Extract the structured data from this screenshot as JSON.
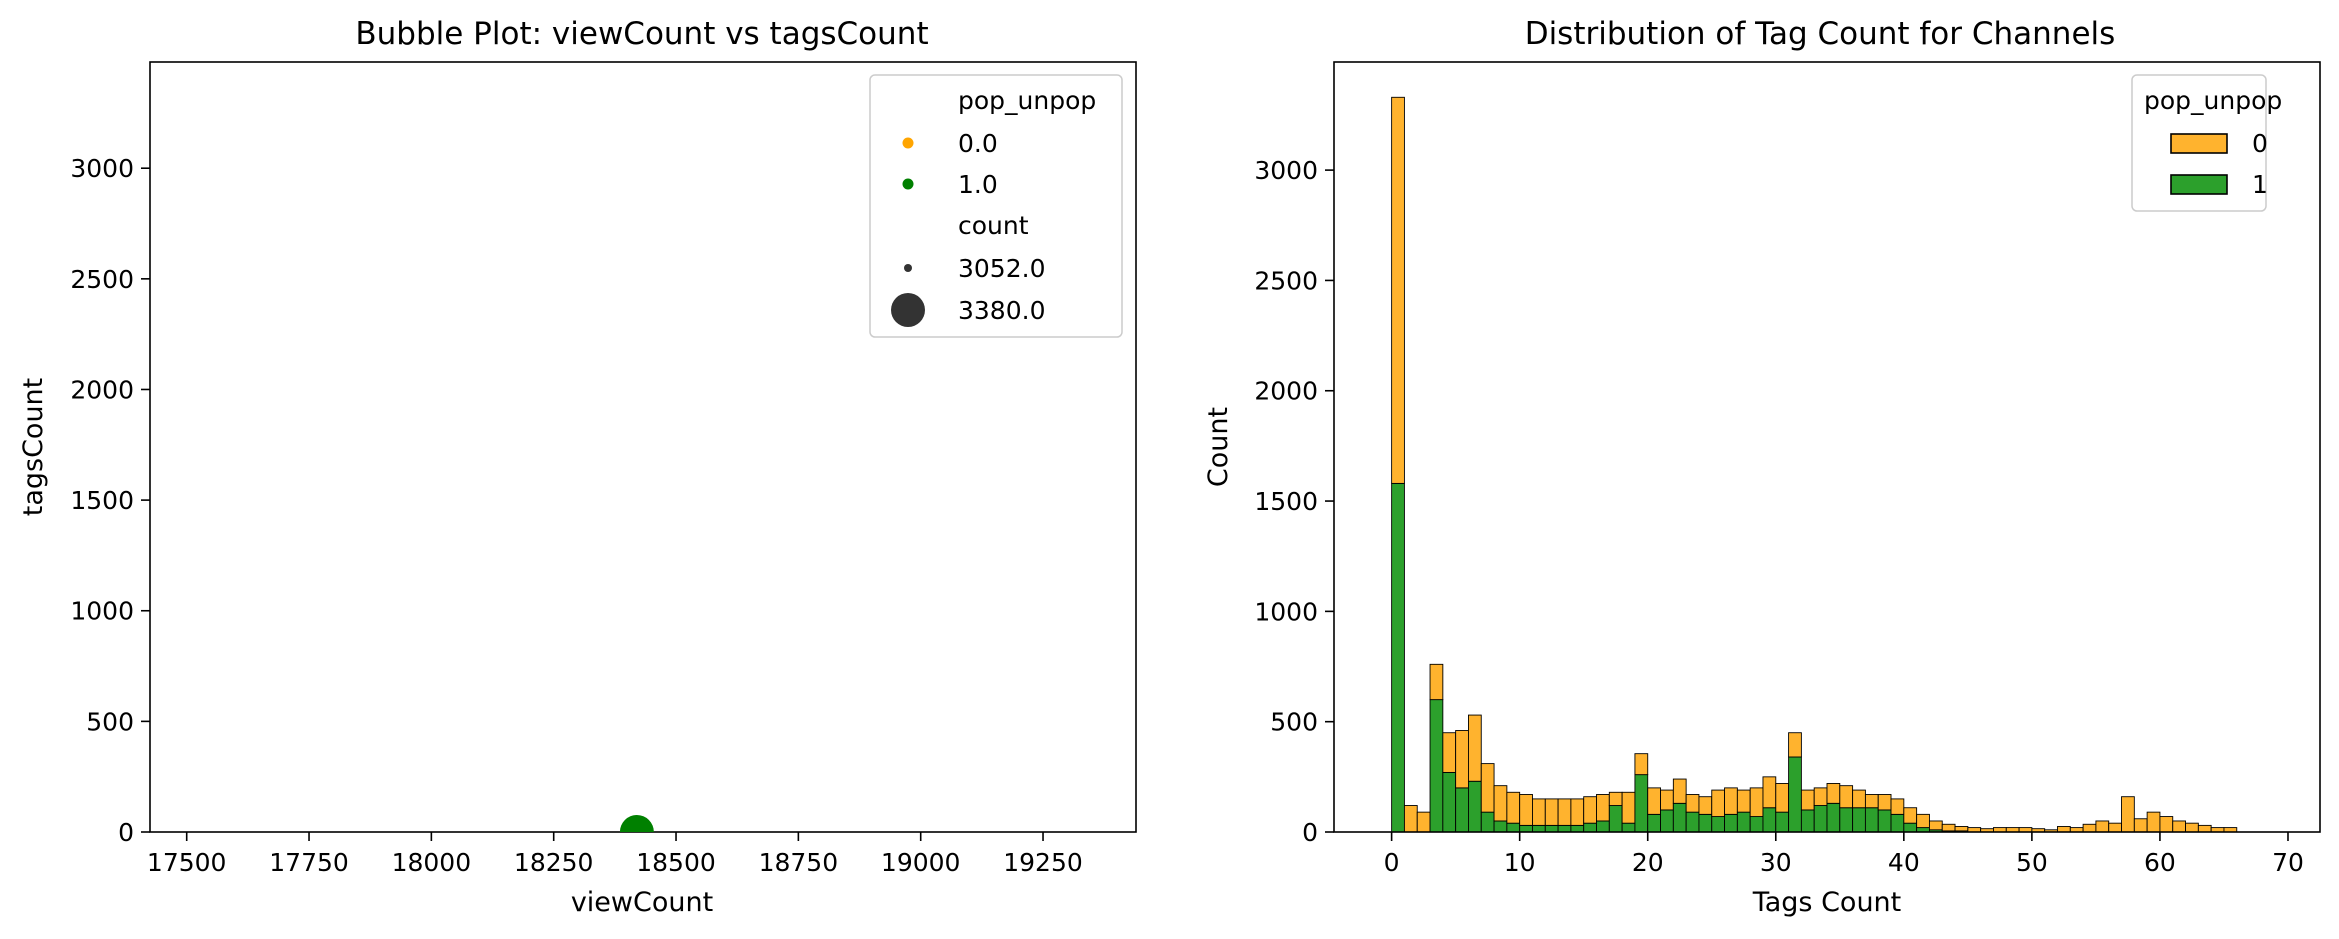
{
  "chart_data": [
    {
      "type": "scatter",
      "title": "Bubble Plot: viewCount vs tagsCount",
      "xlabel": "viewCount",
      "ylabel": "tagsCount",
      "xlim": [
        17425,
        19440
      ],
      "ylim": [
        0,
        3480
      ],
      "xticks": [
        17500,
        17750,
        18000,
        18250,
        18500,
        18750,
        19000,
        19250
      ],
      "yticks": [
        0,
        500,
        1000,
        1500,
        2000,
        2500,
        3000
      ],
      "legend": {
        "placement": "top-right",
        "hue_title": "pop_unpop",
        "hue_entries": [
          {
            "label": "0.0",
            "color": "#ffa500"
          },
          {
            "label": "1.0",
            "color": "#008000"
          }
        ],
        "size_title": "count",
        "size_entries": [
          {
            "label": "3052.0",
            "size": "small"
          },
          {
            "label": "3380.0",
            "size": "large"
          }
        ]
      },
      "points": [
        {
          "x": 18420,
          "y": 0,
          "pop_unpop": 1.0,
          "count": 3380.0,
          "color": "#008000"
        }
      ],
      "grid": false
    },
    {
      "type": "bar",
      "stacked": true,
      "title": "Distribution of Tag Count for Channels",
      "xlabel": "Tags Count",
      "ylabel": "Count",
      "xlim": [
        -4.5,
        72.5
      ],
      "ylim": [
        0,
        3490
      ],
      "xticks": [
        0,
        10,
        20,
        30,
        40,
        50,
        60,
        70
      ],
      "yticks": [
        0,
        500,
        1000,
        1500,
        2000,
        2500,
        3000
      ],
      "bin_start": 0,
      "bin_width": 1,
      "legend": {
        "placement": "top-right",
        "title": "pop_unpop"
      },
      "series": [
        {
          "name": "1",
          "color": "#2ca02c",
          "values": [
            1580,
            0,
            0,
            600,
            270,
            200,
            230,
            90,
            50,
            40,
            30,
            30,
            30,
            30,
            30,
            40,
            50,
            120,
            40,
            260,
            80,
            100,
            130,
            90,
            80,
            70,
            80,
            90,
            70,
            110,
            90,
            340,
            100,
            120,
            130,
            110,
            110,
            110,
            100,
            80,
            40,
            20,
            10,
            5,
            5,
            0,
            0,
            0,
            0,
            0,
            0,
            0,
            0,
            0,
            0,
            0,
            0,
            0,
            0,
            0,
            0,
            0,
            0,
            0,
            0,
            0
          ]
        },
        {
          "name": "0",
          "color": "#ffb32e",
          "values": [
            1750,
            120,
            90,
            160,
            180,
            260,
            300,
            220,
            160,
            140,
            140,
            120,
            120,
            120,
            120,
            120,
            120,
            60,
            140,
            95,
            120,
            90,
            110,
            80,
            80,
            120,
            120,
            100,
            130,
            140,
            130,
            110,
            90,
            80,
            90,
            100,
            80,
            60,
            70,
            70,
            70,
            60,
            40,
            30,
            20,
            20,
            15,
            20,
            20,
            20,
            15,
            10,
            25,
            20,
            35,
            50,
            40,
            160,
            60,
            90,
            70,
            50,
            40,
            30,
            20,
            20
          ]
        }
      ],
      "grid": false
    }
  ]
}
